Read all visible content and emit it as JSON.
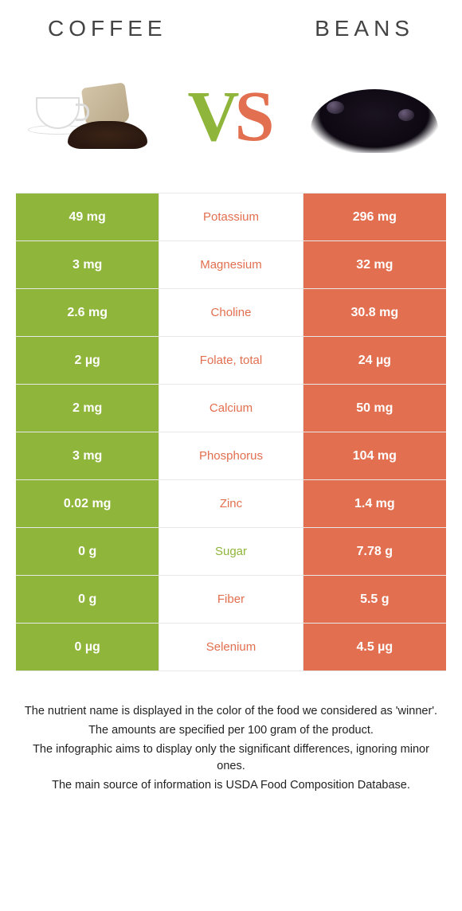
{
  "header": {
    "left": "COFFEE",
    "right": "BEANS"
  },
  "vs": {
    "v_color": "#8fb53b",
    "s_color": "#e26f4f"
  },
  "colors": {
    "left_bg": "#8fb53b",
    "right_bg": "#e26f4f",
    "left_text": "#8fb53b",
    "right_text": "#e26f4f",
    "value_text": "#ffffff",
    "row_border": "#e8e8e8"
  },
  "rows": [
    {
      "left": "49 mg",
      "mid": "Potassium",
      "right": "296 mg",
      "winner": "right"
    },
    {
      "left": "3 mg",
      "mid": "Magnesium",
      "right": "32 mg",
      "winner": "right"
    },
    {
      "left": "2.6 mg",
      "mid": "Choline",
      "right": "30.8 mg",
      "winner": "right"
    },
    {
      "left": "2 µg",
      "mid": "Folate, total",
      "right": "24 µg",
      "winner": "right"
    },
    {
      "left": "2 mg",
      "mid": "Calcium",
      "right": "50 mg",
      "winner": "right"
    },
    {
      "left": "3 mg",
      "mid": "Phosphorus",
      "right": "104 mg",
      "winner": "right"
    },
    {
      "left": "0.02 mg",
      "mid": "Zinc",
      "right": "1.4 mg",
      "winner": "right"
    },
    {
      "left": "0 g",
      "mid": "Sugar",
      "right": "7.78 g",
      "winner": "left"
    },
    {
      "left": "0 g",
      "mid": "Fiber",
      "right": "5.5 g",
      "winner": "right"
    },
    {
      "left": "0 µg",
      "mid": "Selenium",
      "right": "4.5 µg",
      "winner": "right"
    }
  ],
  "footer": [
    "The nutrient name is displayed in the color of the food we considered as 'winner'.",
    "The amounts are specified per 100 gram of the product.",
    "The infographic aims to display only the significant differences, ignoring minor ones.",
    "The main source of information is USDA Food Composition Database."
  ]
}
